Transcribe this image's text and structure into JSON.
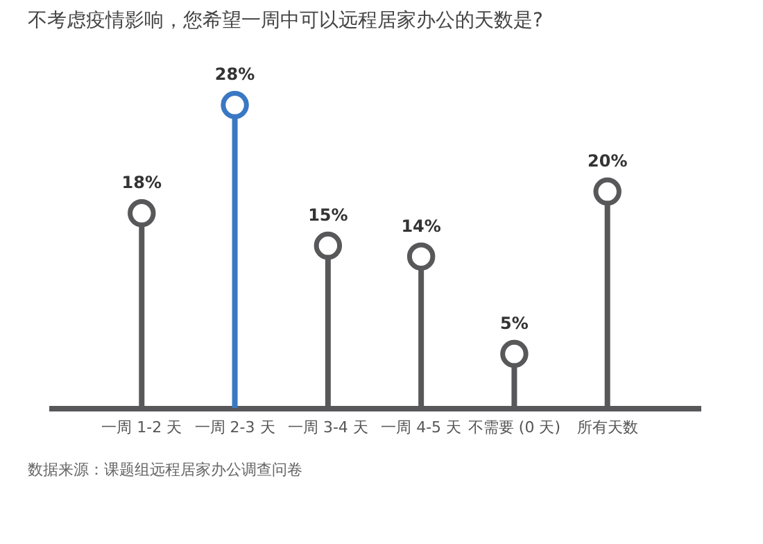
{
  "chart_data": {
    "type": "lollipop",
    "title": "不考虑疫情影响，您希望一周中可以远程居家办公的天数是?",
    "categories": [
      "一周 1-2 天",
      "一周 2-3 天",
      "一周 3-4 天",
      "一周 4-5 天",
      "不需要 (0 天)",
      "所有天数"
    ],
    "values": [
      18,
      28,
      15,
      14,
      5,
      20
    ],
    "value_labels": [
      "18%",
      "28%",
      "15%",
      "14%",
      "5%",
      "20%"
    ],
    "colors": [
      "#58585a",
      "#3a78c3",
      "#58585a",
      "#58585a",
      "#58585a",
      "#58585a"
    ],
    "annotations": [
      "数据来源：课题组远程居家办公调查问卷"
    ]
  }
}
